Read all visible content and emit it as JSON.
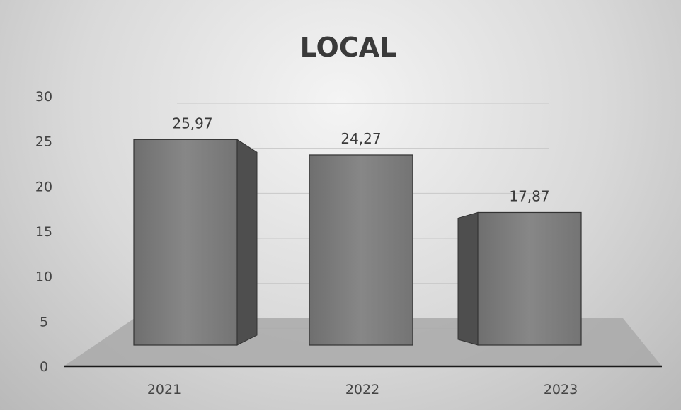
{
  "chart_data": {
    "type": "bar",
    "title": "LOCAL",
    "categories": [
      "2021",
      "2022",
      "2023"
    ],
    "values": [
      25.97,
      24.27,
      17.87
    ],
    "value_labels": [
      "25,97",
      "24,27",
      "17,87"
    ],
    "ylim": [
      0,
      30
    ],
    "yticks": [
      "0",
      "5",
      "10",
      "15",
      "20",
      "25",
      "30"
    ],
    "grid": true,
    "legend": "none",
    "style": "3d-columns",
    "colors": {
      "bar_front": "#7a7a7a",
      "bar_side": "#4e4e4e",
      "bar_top": "#8f8f8f",
      "floor": "#a9a9a9"
    }
  }
}
